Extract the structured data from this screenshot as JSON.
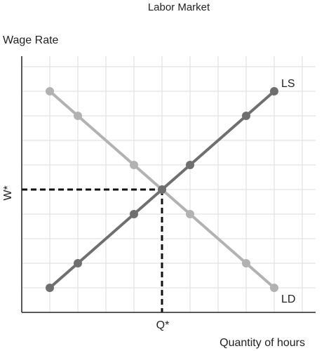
{
  "chart_data": {
    "type": "line",
    "title": "Labor Market",
    "ylabel": "Wage Rate",
    "xlabel": "Quantity of hours",
    "xlim": [
      0,
      10.5
    ],
    "ylim": [
      0,
      10
    ],
    "grid": true,
    "equilibrium": {
      "x": 5,
      "y": 5,
      "xlabel": "Q*",
      "ylabel": "W*"
    },
    "series": [
      {
        "name": "LS",
        "color": "#6f6f6f",
        "points": [
          {
            "x": 1,
            "y": 1
          },
          {
            "x": 2,
            "y": 2
          },
          {
            "x": 4,
            "y": 4
          },
          {
            "x": 5,
            "y": 5
          },
          {
            "x": 6,
            "y": 6
          },
          {
            "x": 8,
            "y": 8
          },
          {
            "x": 9,
            "y": 9
          }
        ]
      },
      {
        "name": "LD",
        "color": "#b2b2b2",
        "points": [
          {
            "x": 1,
            "y": 9
          },
          {
            "x": 2,
            "y": 8
          },
          {
            "x": 4,
            "y": 6
          },
          {
            "x": 5,
            "y": 5
          },
          {
            "x": 6,
            "y": 4
          },
          {
            "x": 8,
            "y": 2
          },
          {
            "x": 9,
            "y": 1
          }
        ]
      }
    ]
  }
}
